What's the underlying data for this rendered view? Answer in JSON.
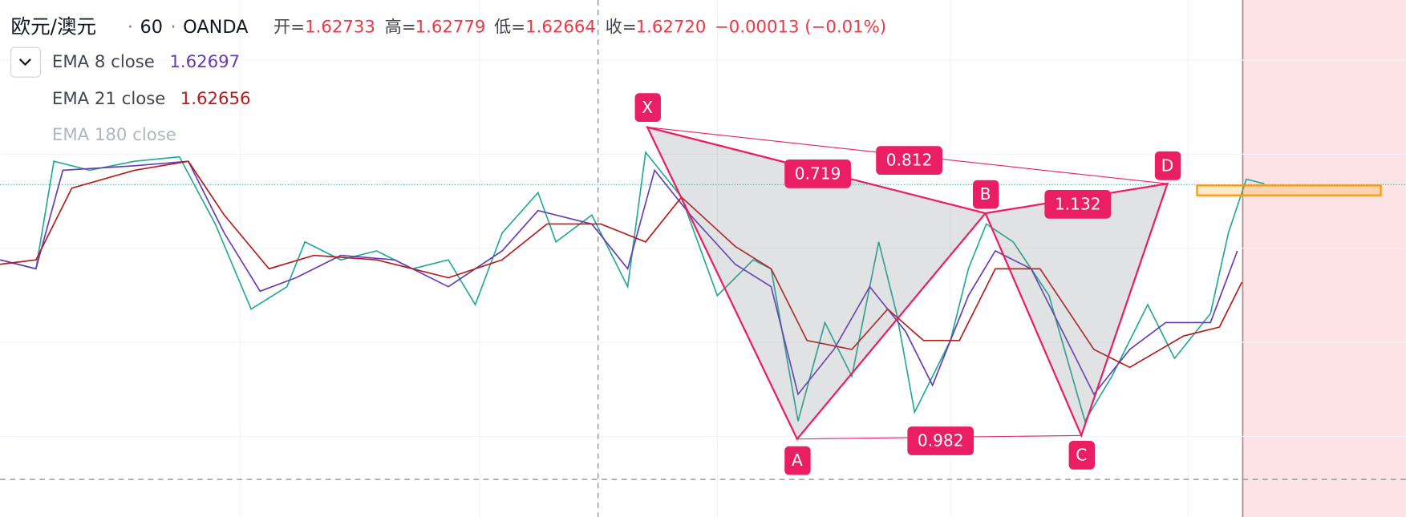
{
  "header": {
    "symbol": "欧元/澳元",
    "separator": "·",
    "interval": "60",
    "exchange": "OANDA",
    "open_label": "开=",
    "open": "1.62733",
    "high_label": "高=",
    "high": "1.62779",
    "low_label": "低=",
    "low": "1.62664",
    "close_label": "收=",
    "close": "1.62720",
    "change": "−0.00013 (−0.01%)"
  },
  "indicators": [
    {
      "name": "EMA 8 close",
      "value": "1.62697"
    },
    {
      "name": "EMA 21 close",
      "value": "1.62656"
    },
    {
      "name": "EMA 180 close"
    }
  ],
  "pattern": {
    "points": [
      "X",
      "A",
      "B",
      "C",
      "D"
    ],
    "ratios": [
      "0.719",
      "0.812",
      "1.132",
      "0.982"
    ]
  }
}
